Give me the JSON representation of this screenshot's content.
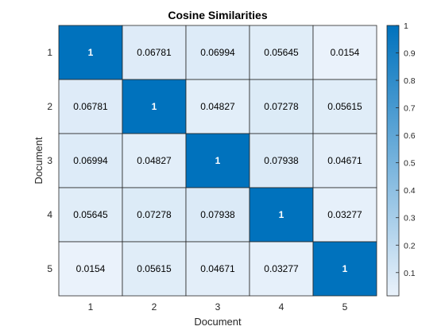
{
  "chart_data": {
    "type": "heatmap",
    "title": "Cosine Similarities",
    "xlabel": "Document",
    "ylabel": "Document",
    "x_categories": [
      "1",
      "2",
      "3",
      "4",
      "5"
    ],
    "y_categories": [
      "1",
      "2",
      "3",
      "4",
      "5"
    ],
    "values": [
      [
        1,
        0.06781,
        0.06994,
        0.05645,
        0.0154
      ],
      [
        0.06781,
        1,
        0.04827,
        0.07278,
        0.05615
      ],
      [
        0.06994,
        0.04827,
        1,
        0.07938,
        0.04671
      ],
      [
        0.05645,
        0.07278,
        0.07938,
        1,
        0.03277
      ],
      [
        0.0154,
        0.05615,
        0.04671,
        0.03277,
        1
      ]
    ],
    "cell_labels": [
      [
        "1",
        "0.06781",
        "0.06994",
        "0.05645",
        "0.0154"
      ],
      [
        "0.06781",
        "1",
        "0.04827",
        "0.07278",
        "0.05615"
      ],
      [
        "0.06994",
        "0.04827",
        "1",
        "0.07938",
        "0.04671"
      ],
      [
        "0.05645",
        "0.07278",
        "0.07938",
        "1",
        "0.03277"
      ],
      [
        "0.0154",
        "0.05615",
        "0.04671",
        "0.03277",
        "1"
      ]
    ],
    "colorbar": {
      "range": [
        0.0154,
        1
      ],
      "ticks": [
        0.1,
        0.2,
        0.3,
        0.4,
        0.5,
        0.6,
        0.7,
        0.8,
        0.9,
        1
      ],
      "tick_labels": [
        "0.1",
        "0.2",
        "0.3",
        "0.4",
        "0.5",
        "0.6",
        "0.7",
        "0.8",
        "0.9",
        "1"
      ],
      "color_low": "#eaf2fb",
      "color_high": "#0072bd"
    },
    "grid": true,
    "legend": "colorbar-right"
  }
}
